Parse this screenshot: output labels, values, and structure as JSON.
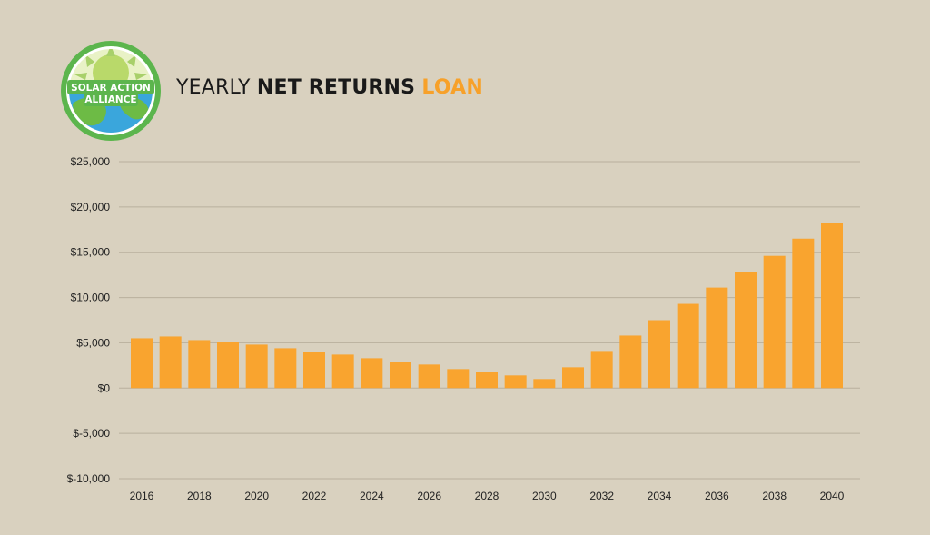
{
  "logo": {
    "line1": "SOLAR ACTION",
    "line2": "ALLIANCE"
  },
  "title": {
    "part1": "YEARLY",
    "part2": "NET RETURNS",
    "part3": "LOAN"
  },
  "colors": {
    "bar": "#f9a42f",
    "grid": "#b9b09d",
    "background": "#d9d1bf",
    "accent": "#f7a12a"
  },
  "chart_data": {
    "type": "bar",
    "title": "YEARLY NET RETURNS LOAN",
    "xlabel": "",
    "ylabel": "",
    "ylim": [
      -10000,
      25000
    ],
    "y_ticks": [
      25000,
      20000,
      15000,
      10000,
      5000,
      0,
      -5000,
      -10000
    ],
    "y_tick_labels": [
      "$25,000",
      "$20,000",
      "$15,000",
      "$10,000",
      "$5,000",
      "$0",
      "$-5,000",
      "$-10,000"
    ],
    "x_tick_labels": [
      "2016",
      "2018",
      "2020",
      "2022",
      "2024",
      "2026",
      "2028",
      "2030",
      "2032",
      "2034",
      "2036",
      "2038",
      "2040"
    ],
    "categories": [
      "2016",
      "2017",
      "2018",
      "2019",
      "2020",
      "2021",
      "2022",
      "2023",
      "2024",
      "2025",
      "2026",
      "2027",
      "2028",
      "2029",
      "2030",
      "2031",
      "2032",
      "2033",
      "2034",
      "2035",
      "2036",
      "2037",
      "2038",
      "2039",
      "2040"
    ],
    "values": [
      5500,
      5700,
      5300,
      5100,
      4800,
      4400,
      4000,
      3700,
      3300,
      2900,
      2600,
      2100,
      1800,
      1400,
      1000,
      2300,
      4100,
      5800,
      7500,
      9300,
      11100,
      12800,
      14600,
      16500,
      18200
    ],
    "grid": true,
    "legend": "none"
  }
}
